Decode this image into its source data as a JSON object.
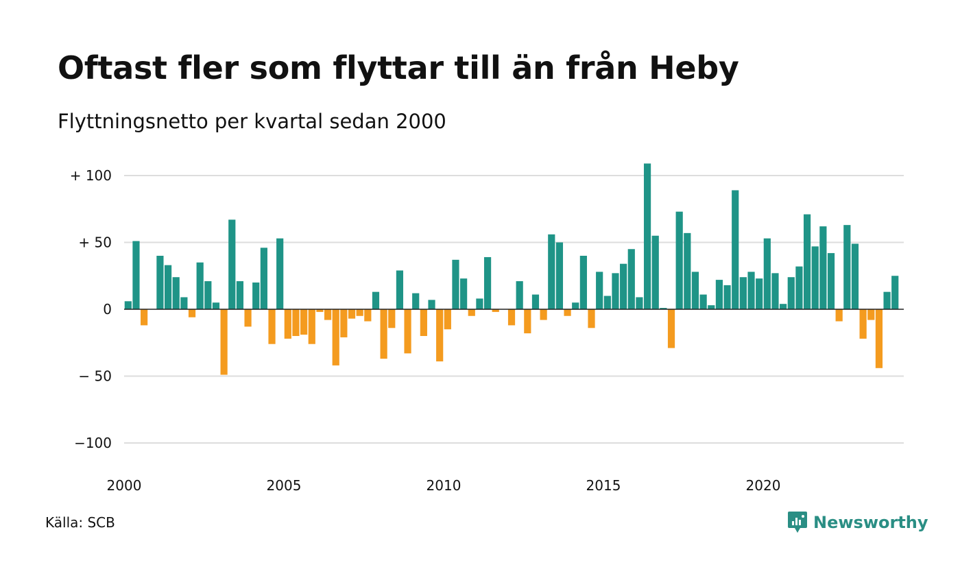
{
  "title": "Oftast fler som flyttar till än från Heby",
  "subtitle": "Flyttningsnetto per kvartal sedan 2000",
  "source": "Källa: SCB",
  "brand": {
    "name": "Newsworthy",
    "icon": "newsworthy-logo-icon"
  },
  "colors": {
    "positive": "#1f9487",
    "negative": "#f49b1f",
    "grid": "#dddddd",
    "baseline": "#222222",
    "text": "#111111"
  },
  "chart_data": {
    "type": "bar",
    "title": "Oftast fler som flyttar till än från Heby",
    "subtitle": "Flyttningsnetto per kvartal sedan 2000",
    "x_start": 2000,
    "periods_per_year": 4,
    "ylim": [
      -110,
      110
    ],
    "y_ticks": [
      {
        "value": 100,
        "label": "+ 100"
      },
      {
        "value": 50,
        "label": "+  50"
      },
      {
        "value": 0,
        "label": "0"
      },
      {
        "value": -50,
        "label": "− 50"
      },
      {
        "value": -100,
        "label": "−100"
      }
    ],
    "x_ticks": [
      "2000",
      "2005",
      "2010",
      "2015",
      "2020"
    ],
    "grid": true,
    "values": [
      6,
      51,
      -12,
      0,
      40,
      33,
      24,
      9,
      -6,
      35,
      21,
      5,
      -49,
      67,
      21,
      -13,
      20,
      46,
      -26,
      53,
      -22,
      -20,
      -19,
      -26,
      -2,
      -8,
      -42,
      -21,
      -7,
      -5,
      -9,
      13,
      -37,
      -14,
      29,
      -33,
      12,
      -20,
      7,
      -39,
      -15,
      37,
      23,
      -5,
      8,
      39,
      -2,
      0,
      -12,
      21,
      -18,
      11,
      -8,
      56,
      50,
      -5,
      5,
      40,
      -14,
      28,
      10,
      27,
      34,
      45,
      9,
      109,
      55,
      1,
      -29,
      73,
      57,
      28,
      11,
      3,
      22,
      18,
      89,
      24,
      28,
      23,
      53,
      27,
      4,
      24,
      32,
      71,
      47,
      62,
      42,
      -9,
      63,
      49,
      -22,
      -8,
      -44,
      13,
      25
    ]
  }
}
